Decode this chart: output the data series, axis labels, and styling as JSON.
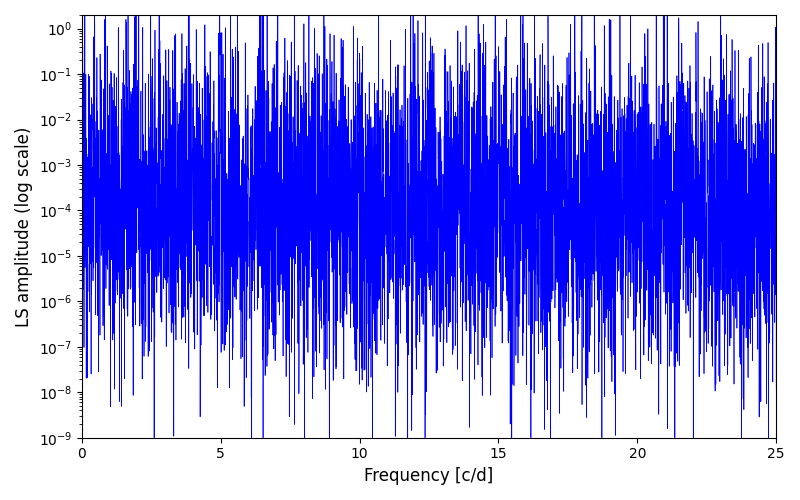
{
  "title": "",
  "xlabel": "Frequency [c/d]",
  "ylabel": "LS amplitude (log scale)",
  "line_color": "#0000ff",
  "line_width": 0.5,
  "xlim": [
    0,
    25
  ],
  "ylim": [
    1e-09,
    2
  ],
  "yscale": "log",
  "figsize": [
    8.0,
    5.0
  ],
  "dpi": 100,
  "peak1_freq": 4.98,
  "peak1_amp": 0.82,
  "peak2_freq": 9.96,
  "peak2_amp": 0.022,
  "noise_floor_log_mean": -9.2,
  "noise_sigma": 3.0,
  "seed": 12345,
  "n_points": 5000,
  "low_freq_boost": 3.0,
  "low_freq_scale": 2.0
}
